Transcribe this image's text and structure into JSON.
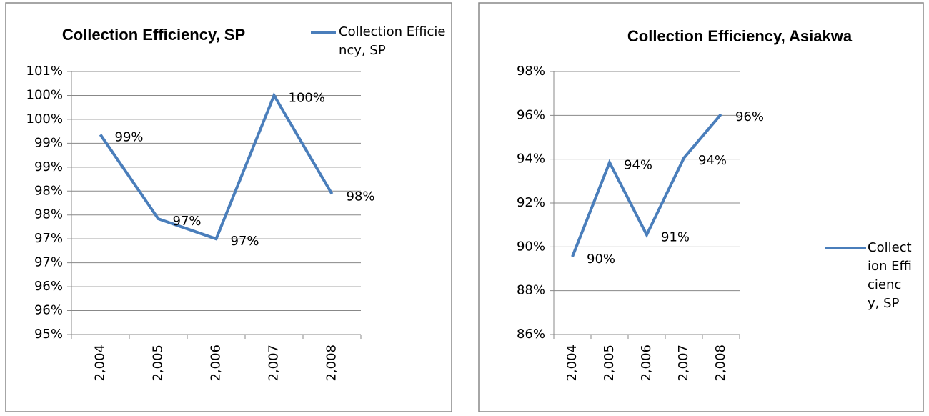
{
  "chart_data": [
    {
      "type": "line",
      "title": "Collection Efficiency, SP",
      "categories": [
        "2,004",
        "2,005",
        "2,006",
        "2,007",
        "2,008"
      ],
      "series": [
        {
          "name": "Collection Efficiency, SP",
          "color": "#4a7ebb",
          "values": [
            99.18,
            97.42,
            97.0,
            100.0,
            97.94
          ],
          "value_labels": [
            "99%",
            "97%",
            "97%",
            "100%",
            "98%"
          ]
        }
      ],
      "ylim": [
        95,
        100.5
      ],
      "yticks": [
        {
          "value": 95,
          "label": "95%"
        },
        {
          "value": 95.5,
          "label": "96%"
        },
        {
          "value": 96,
          "label": "96%"
        },
        {
          "value": 96.5,
          "label": "97%"
        },
        {
          "value": 97,
          "label": "97%"
        },
        {
          "value": 97.5,
          "label": "98%"
        },
        {
          "value": 98,
          "label": "98%"
        },
        {
          "value": 98.5,
          "label": "99%"
        },
        {
          "value": 99,
          "label": "99%"
        },
        {
          "value": 99.5,
          "label": "100%"
        },
        {
          "value": 100,
          "label": "100%"
        },
        {
          "value": 100.5,
          "label": "101%"
        }
      ],
      "grid": true,
      "legend": "top-right"
    },
    {
      "type": "line",
      "title": "Collection Efficiency, Asiakwa",
      "categories": [
        "2,004",
        "2,005",
        "2,006",
        "2,007",
        "2,008"
      ],
      "series": [
        {
          "name": "Collection Efficiency, SP",
          "color": "#4a7ebb",
          "values": [
            89.55,
            93.85,
            90.55,
            94.05,
            96.05
          ],
          "value_labels": [
            "90%",
            "94%",
            "91%",
            "94%",
            "96%"
          ]
        }
      ],
      "ylim": [
        86,
        98
      ],
      "yticks": [
        {
          "value": 86,
          "label": "86%"
        },
        {
          "value": 88,
          "label": "88%"
        },
        {
          "value": 90,
          "label": "90%"
        },
        {
          "value": 92,
          "label": "92%"
        },
        {
          "value": 94,
          "label": "94%"
        },
        {
          "value": 96,
          "label": "96%"
        },
        {
          "value": 98,
          "label": "98%"
        }
      ],
      "grid": true,
      "legend": "right"
    }
  ]
}
